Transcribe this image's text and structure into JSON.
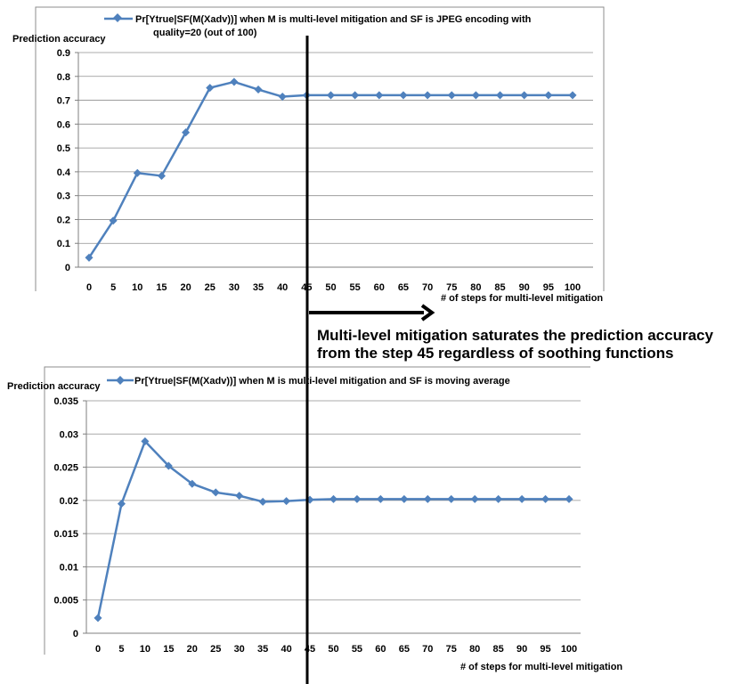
{
  "chart_data": [
    {
      "type": "line",
      "legend_text_line1": "Pr[Ytrue|SF(M(Xadv))] when M is multi-level mitigation and SF is JPEG encoding with",
      "legend_text_line2": "quality=20 (out of 100)",
      "legend_placement": "top",
      "ylabel": "Prediction accuracy",
      "xlabel": "# of steps for multi-level mitigation",
      "ylim": [
        0,
        0.9
      ],
      "y_ticks": [
        "0",
        "0.1",
        "0.2",
        "0.3",
        "0.4",
        "0.5",
        "0.6",
        "0.7",
        "0.8",
        "0.9"
      ],
      "categories": [
        "0",
        "5",
        "10",
        "15",
        "20",
        "25",
        "30",
        "35",
        "40",
        "45",
        "50",
        "55",
        "60",
        "65",
        "70",
        "75",
        "80",
        "85",
        "90",
        "95",
        "100"
      ],
      "grid": true,
      "series": [
        {
          "name": "Pr[Ytrue|SF(M(Xadv))] when M is multi-level mitigation and SF is JPEG encoding with quality=20 (out of 100)",
          "color": "#4f81bd",
          "values": [
            0.04,
            0.195,
            0.395,
            0.383,
            0.565,
            0.752,
            0.777,
            0.745,
            0.715,
            0.721,
            0.721,
            0.721,
            0.721,
            0.721,
            0.721,
            0.721,
            0.721,
            0.721,
            0.721,
            0.721,
            0.721
          ]
        }
      ]
    },
    {
      "type": "line",
      "legend_text": "Pr[Ytrue|SF(M(Xadv))] when M is multi-level mitigation and SF is moving average",
      "legend_placement": "top",
      "ylabel": "Prediction accuracy",
      "xlabel": "# of steps for multi-level mitigation",
      "ylim": [
        0,
        0.035
      ],
      "y_ticks": [
        "0",
        "0.005",
        "0.01",
        "0.015",
        "0.02",
        "0.025",
        "0.03",
        "0.035"
      ],
      "categories": [
        "0",
        "5",
        "10",
        "15",
        "20",
        "25",
        "30",
        "35",
        "40",
        "45",
        "50",
        "55",
        "60",
        "65",
        "70",
        "75",
        "80",
        "85",
        "90",
        "95",
        "100"
      ],
      "grid": true,
      "series": [
        {
          "name": "Pr[Ytrue|SF(M(Xadv))] when M is multi-level mitigation and SF is moving average",
          "color": "#4f81bd",
          "values": [
            0.0023,
            0.0195,
            0.0289,
            0.0252,
            0.0225,
            0.0212,
            0.0207,
            0.0198,
            0.0199,
            0.0201,
            0.0202,
            0.0202,
            0.0202,
            0.0202,
            0.0202,
            0.0202,
            0.0202,
            0.0202,
            0.0202,
            0.0202,
            0.0202
          ]
        }
      ]
    }
  ],
  "annotation": {
    "line1": "Multi-level mitigation saturates the prediction accuracy",
    "line2": "from the step 45 regardless of soothing functions"
  }
}
